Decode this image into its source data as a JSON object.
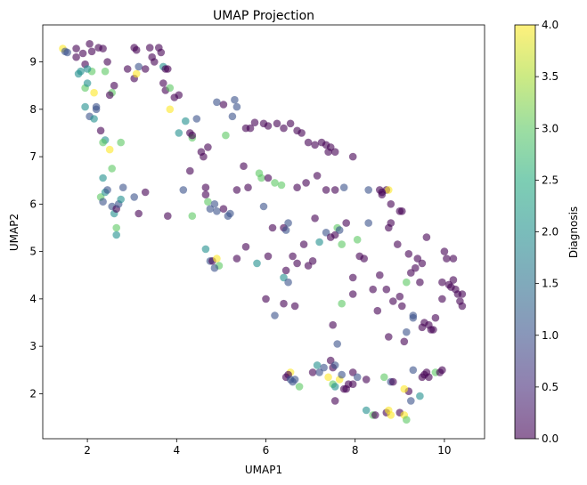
{
  "chart_data": {
    "type": "scatter",
    "title": "UMAP Projection",
    "xlabel": "UMAP1",
    "ylabel": "UMAP2",
    "xlim": [
      1.0,
      10.9
    ],
    "ylim": [
      1.05,
      9.78
    ],
    "xticks": [
      2,
      4,
      6,
      8,
      10
    ],
    "yticks": [
      2,
      3,
      4,
      5,
      6,
      7,
      8,
      9
    ],
    "grid": false,
    "colorbar": {
      "label": "Diagnosis",
      "min": 0.0,
      "max": 4.0,
      "ticks": [
        "0.0",
        "0.5",
        "1.0",
        "1.5",
        "2.0",
        "2.5",
        "3.0",
        "3.5",
        "4.0"
      ],
      "colormap": "viridis"
    },
    "marker_alpha": 0.6,
    "points": [
      [
        1.45,
        9.28,
        4
      ],
      [
        1.5,
        9.22,
        1
      ],
      [
        1.55,
        9.2,
        1
      ],
      [
        1.75,
        9.28,
        0
      ],
      [
        1.75,
        9.1,
        0
      ],
      [
        1.9,
        9.18,
        0
      ],
      [
        2.05,
        9.38,
        0
      ],
      [
        2.1,
        9.22,
        0
      ],
      [
        2.25,
        9.3,
        0
      ],
      [
        1.95,
        8.95,
        0
      ],
      [
        2.1,
        8.8,
        3
      ],
      [
        2.35,
        9.28,
        0
      ],
      [
        2.45,
        9.0,
        0
      ],
      [
        1.8,
        8.75,
        2
      ],
      [
        1.85,
        8.8,
        2
      ],
      [
        2.0,
        8.85,
        2
      ],
      [
        2.4,
        8.8,
        3
      ],
      [
        2.6,
        8.5,
        0
      ],
      [
        2.55,
        8.35,
        3
      ],
      [
        2.5,
        8.3,
        0
      ],
      [
        1.95,
        8.45,
        3
      ],
      [
        2.0,
        8.55,
        2
      ],
      [
        2.15,
        8.35,
        4
      ],
      [
        1.95,
        8.05,
        2
      ],
      [
        2.05,
        7.85,
        1
      ],
      [
        2.15,
        7.8,
        2
      ],
      [
        2.2,
        8.05,
        1
      ],
      [
        2.2,
        8.0,
        1
      ],
      [
        2.3,
        7.55,
        0
      ],
      [
        2.4,
        7.35,
        2
      ],
      [
        2.35,
        7.3,
        3
      ],
      [
        2.5,
        7.15,
        4
      ],
      [
        2.75,
        7.3,
        3
      ],
      [
        2.9,
        8.85,
        0
      ],
      [
        3.05,
        8.65,
        0
      ],
      [
        3.1,
        8.75,
        4
      ],
      [
        3.05,
        9.3,
        0
      ],
      [
        3.1,
        9.25,
        0
      ],
      [
        3.15,
        8.9,
        1
      ],
      [
        3.3,
        8.85,
        0
      ],
      [
        3.4,
        9.3,
        0
      ],
      [
        3.45,
        9.1,
        0
      ],
      [
        3.5,
        9.0,
        0
      ],
      [
        3.6,
        9.3,
        0
      ],
      [
        3.65,
        9.2,
        0
      ],
      [
        3.7,
        8.9,
        2
      ],
      [
        3.75,
        8.85,
        0
      ],
      [
        3.8,
        8.85,
        0
      ],
      [
        3.7,
        8.55,
        0
      ],
      [
        3.75,
        8.4,
        0
      ],
      [
        3.85,
        8.45,
        3
      ],
      [
        3.85,
        8.0,
        4
      ],
      [
        3.95,
        8.25,
        0
      ],
      [
        4.05,
        8.3,
        0
      ],
      [
        4.05,
        7.5,
        2
      ],
      [
        4.3,
        7.5,
        0
      ],
      [
        4.35,
        7.4,
        3
      ],
      [
        4.35,
        7.45,
        0
      ],
      [
        4.55,
        7.1,
        0
      ],
      [
        4.6,
        7.0,
        0
      ],
      [
        4.7,
        7.2,
        0
      ],
      [
        4.3,
        6.7,
        0
      ],
      [
        4.2,
        7.75,
        2
      ],
      [
        4.45,
        7.8,
        1
      ],
      [
        4.9,
        8.15,
        1
      ],
      [
        5.05,
        8.1,
        0
      ],
      [
        5.3,
        8.2,
        1
      ],
      [
        5.35,
        8.05,
        1
      ],
      [
        5.25,
        7.85,
        1
      ],
      [
        5.1,
        7.45,
        3
      ],
      [
        5.55,
        7.6,
        0
      ],
      [
        5.65,
        7.6,
        0
      ],
      [
        5.75,
        7.72,
        0
      ],
      [
        5.95,
        7.7,
        0
      ],
      [
        6.05,
        7.65,
        0
      ],
      [
        6.25,
        7.7,
        0
      ],
      [
        6.4,
        7.6,
        0
      ],
      [
        6.55,
        7.7,
        0
      ],
      [
        6.7,
        7.55,
        0
      ],
      [
        6.8,
        7.5,
        0
      ],
      [
        6.95,
        7.3,
        0
      ],
      [
        7.1,
        7.25,
        0
      ],
      [
        7.25,
        7.3,
        0
      ],
      [
        7.35,
        7.25,
        0
      ],
      [
        7.4,
        7.1,
        0
      ],
      [
        7.45,
        7.2,
        0
      ],
      [
        7.55,
        7.1,
        0
      ],
      [
        7.95,
        7.0,
        0
      ],
      [
        5.5,
        6.8,
        0
      ],
      [
        5.85,
        6.65,
        3
      ],
      [
        5.9,
        6.55,
        3
      ],
      [
        6.05,
        6.55,
        0
      ],
      [
        6.2,
        6.45,
        3
      ],
      [
        6.35,
        6.4,
        3
      ],
      [
        6.7,
        6.35,
        0
      ],
      [
        6.9,
        6.45,
        0
      ],
      [
        7.15,
        6.6,
        0
      ],
      [
        7.35,
        6.3,
        0
      ],
      [
        7.55,
        6.3,
        0
      ],
      [
        7.75,
        6.35,
        1
      ],
      [
        8.3,
        6.3,
        1
      ],
      [
        8.55,
        6.3,
        0
      ],
      [
        8.6,
        6.2,
        0
      ],
      [
        8.7,
        6.3,
        0
      ],
      [
        8.75,
        6.3,
        4
      ],
      [
        8.8,
        6.0,
        0
      ],
      [
        9.05,
        5.85,
        0
      ],
      [
        9.0,
        5.85,
        0
      ],
      [
        2.35,
        6.55,
        2
      ],
      [
        2.3,
        6.15,
        3
      ],
      [
        2.4,
        6.25,
        2
      ],
      [
        2.45,
        6.3,
        1
      ],
      [
        2.55,
        6.75,
        3
      ],
      [
        2.35,
        6.05,
        1
      ],
      [
        2.55,
        5.95,
        1
      ],
      [
        2.6,
        5.8,
        2
      ],
      [
        2.65,
        5.9,
        0
      ],
      [
        2.7,
        6.0,
        1
      ],
      [
        2.75,
        6.1,
        2
      ],
      [
        2.8,
        6.35,
        1
      ],
      [
        2.65,
        5.5,
        3
      ],
      [
        2.65,
        5.35,
        2
      ],
      [
        3.05,
        6.15,
        1
      ],
      [
        3.15,
        5.8,
        0
      ],
      [
        3.3,
        6.25,
        0
      ],
      [
        3.8,
        5.75,
        0
      ],
      [
        4.15,
        6.3,
        1
      ],
      [
        4.35,
        5.75,
        3
      ],
      [
        4.65,
        6.35,
        0
      ],
      [
        4.65,
        6.2,
        0
      ],
      [
        4.7,
        6.05,
        3
      ],
      [
        4.75,
        5.9,
        1
      ],
      [
        4.85,
        6.0,
        1
      ],
      [
        4.9,
        5.85,
        1
      ],
      [
        5.05,
        5.9,
        0
      ],
      [
        5.15,
        5.75,
        1
      ],
      [
        5.2,
        5.8,
        1
      ],
      [
        5.35,
        6.3,
        0
      ],
      [
        5.6,
        6.35,
        0
      ],
      [
        5.55,
        5.1,
        0
      ],
      [
        5.35,
        4.85,
        0
      ],
      [
        4.65,
        5.05,
        2
      ],
      [
        4.75,
        4.8,
        1
      ],
      [
        4.8,
        4.8,
        0
      ],
      [
        4.9,
        4.85,
        4
      ],
      [
        4.95,
        4.7,
        3
      ],
      [
        4.85,
        4.65,
        1
      ],
      [
        5.95,
        5.95,
        1
      ],
      [
        6.15,
        5.5,
        0
      ],
      [
        6.4,
        5.5,
        0
      ],
      [
        6.45,
        5.45,
        1
      ],
      [
        6.5,
        5.6,
        1
      ],
      [
        6.05,
        4.9,
        0
      ],
      [
        5.8,
        4.75,
        2
      ],
      [
        6.0,
        4.0,
        0
      ],
      [
        6.4,
        4.45,
        2
      ],
      [
        6.45,
        4.6,
        0
      ],
      [
        6.5,
        4.35,
        1
      ],
      [
        6.6,
        4.9,
        0
      ],
      [
        6.7,
        4.75,
        0
      ],
      [
        6.2,
        3.65,
        1
      ],
      [
        6.4,
        3.9,
        0
      ],
      [
        6.65,
        3.85,
        0
      ],
      [
        6.85,
        5.15,
        0
      ],
      [
        6.95,
        4.7,
        0
      ],
      [
        7.05,
        4.8,
        0
      ],
      [
        7.1,
        5.7,
        0
      ],
      [
        7.2,
        5.2,
        2
      ],
      [
        7.35,
        5.4,
        1
      ],
      [
        7.45,
        5.3,
        0
      ],
      [
        7.55,
        5.35,
        0
      ],
      [
        7.6,
        5.5,
        3
      ],
      [
        7.65,
        5.45,
        1
      ],
      [
        7.7,
        5.15,
        3
      ],
      [
        7.7,
        3.9,
        3
      ],
      [
        7.8,
        5.6,
        0
      ],
      [
        7.95,
        4.45,
        0
      ],
      [
        7.95,
        4.1,
        0
      ],
      [
        8.05,
        5.25,
        3
      ],
      [
        8.1,
        4.9,
        0
      ],
      [
        8.2,
        4.85,
        0
      ],
      [
        8.3,
        5.6,
        1
      ],
      [
        8.4,
        4.2,
        0
      ],
      [
        8.5,
        3.75,
        0
      ],
      [
        8.55,
        4.5,
        0
      ],
      [
        8.6,
        6.25,
        0
      ],
      [
        8.7,
        4.2,
        0
      ],
      [
        8.75,
        5.5,
        0
      ],
      [
        8.75,
        3.2,
        0
      ],
      [
        8.8,
        5.6,
        0
      ],
      [
        8.85,
        3.95,
        0
      ],
      [
        8.95,
        5.15,
        0
      ],
      [
        9.0,
        4.05,
        0
      ],
      [
        9.05,
        3.85,
        0
      ],
      [
        9.1,
        3.1,
        0
      ],
      [
        9.15,
        3.3,
        1
      ],
      [
        9.2,
        4.95,
        0
      ],
      [
        9.25,
        4.55,
        0
      ],
      [
        9.3,
        3.65,
        1
      ],
      [
        9.3,
        3.6,
        1
      ],
      [
        9.35,
        4.65,
        0
      ],
      [
        9.4,
        4.85,
        0
      ],
      [
        9.45,
        4.35,
        0
      ],
      [
        9.5,
        4.75,
        0
      ],
      [
        9.5,
        3.4,
        0
      ],
      [
        9.55,
        3.5,
        0
      ],
      [
        9.6,
        5.3,
        0
      ],
      [
        9.65,
        3.45,
        0
      ],
      [
        9.7,
        3.35,
        0
      ],
      [
        9.75,
        3.35,
        0
      ],
      [
        9.8,
        3.6,
        0
      ],
      [
        9.95,
        4.0,
        0
      ],
      [
        9.95,
        4.35,
        0
      ],
      [
        10.0,
        5.0,
        0
      ],
      [
        10.05,
        4.85,
        0
      ],
      [
        10.1,
        4.3,
        0
      ],
      [
        10.15,
        4.25,
        0
      ],
      [
        10.2,
        4.4,
        0
      ],
      [
        10.2,
        4.85,
        0
      ],
      [
        10.25,
        4.2,
        0
      ],
      [
        10.3,
        4.1,
        0
      ],
      [
        10.35,
        3.95,
        0
      ],
      [
        10.4,
        3.85,
        0
      ],
      [
        10.4,
        4.1,
        0
      ],
      [
        9.15,
        4.35,
        3
      ],
      [
        7.5,
        3.45,
        0
      ],
      [
        7.6,
        3.05,
        1
      ],
      [
        6.55,
        2.45,
        4
      ],
      [
        6.5,
        2.4,
        0
      ],
      [
        6.45,
        2.35,
        0
      ],
      [
        6.55,
        2.3,
        1
      ],
      [
        6.6,
        2.25,
        1
      ],
      [
        6.65,
        2.3,
        1
      ],
      [
        6.75,
        2.15,
        3
      ],
      [
        7.05,
        2.45,
        0
      ],
      [
        7.15,
        2.6,
        2
      ],
      [
        7.2,
        2.45,
        1
      ],
      [
        7.3,
        2.55,
        1
      ],
      [
        7.4,
        2.35,
        4
      ],
      [
        7.45,
        2.7,
        0
      ],
      [
        7.5,
        2.2,
        3
      ],
      [
        7.5,
        2.55,
        0
      ],
      [
        7.55,
        2.6,
        1
      ],
      [
        7.55,
        1.85,
        0
      ],
      [
        7.55,
        2.15,
        2
      ],
      [
        7.65,
        2.3,
        4
      ],
      [
        7.7,
        2.4,
        1
      ],
      [
        7.75,
        2.1,
        0
      ],
      [
        7.8,
        2.1,
        0
      ],
      [
        7.85,
        2.2,
        0
      ],
      [
        7.95,
        2.45,
        0
      ],
      [
        7.95,
        2.2,
        0
      ],
      [
        8.05,
        2.35,
        1
      ],
      [
        8.25,
        2.3,
        0
      ],
      [
        8.25,
        1.65,
        2
      ],
      [
        8.4,
        1.55,
        3
      ],
      [
        8.45,
        1.55,
        0
      ],
      [
        8.65,
        2.35,
        3
      ],
      [
        8.7,
        1.6,
        0
      ],
      [
        8.75,
        1.65,
        4
      ],
      [
        8.8,
        1.55,
        4
      ],
      [
        8.8,
        2.25,
        1
      ],
      [
        8.85,
        2.25,
        0
      ],
      [
        9.0,
        1.6,
        0
      ],
      [
        9.1,
        1.55,
        4
      ],
      [
        9.15,
        1.45,
        3
      ],
      [
        9.25,
        1.85,
        1
      ],
      [
        9.3,
        2.5,
        1
      ],
      [
        9.45,
        1.95,
        2
      ],
      [
        9.5,
        2.35,
        0
      ],
      [
        9.55,
        2.4,
        0
      ],
      [
        9.6,
        2.45,
        0
      ],
      [
        9.65,
        2.35,
        0
      ],
      [
        9.8,
        2.45,
        3
      ],
      [
        9.9,
        2.45,
        0
      ],
      [
        9.95,
        2.5,
        0
      ],
      [
        9.2,
        2.05,
        0
      ],
      [
        9.1,
        2.1,
        4
      ]
    ]
  }
}
